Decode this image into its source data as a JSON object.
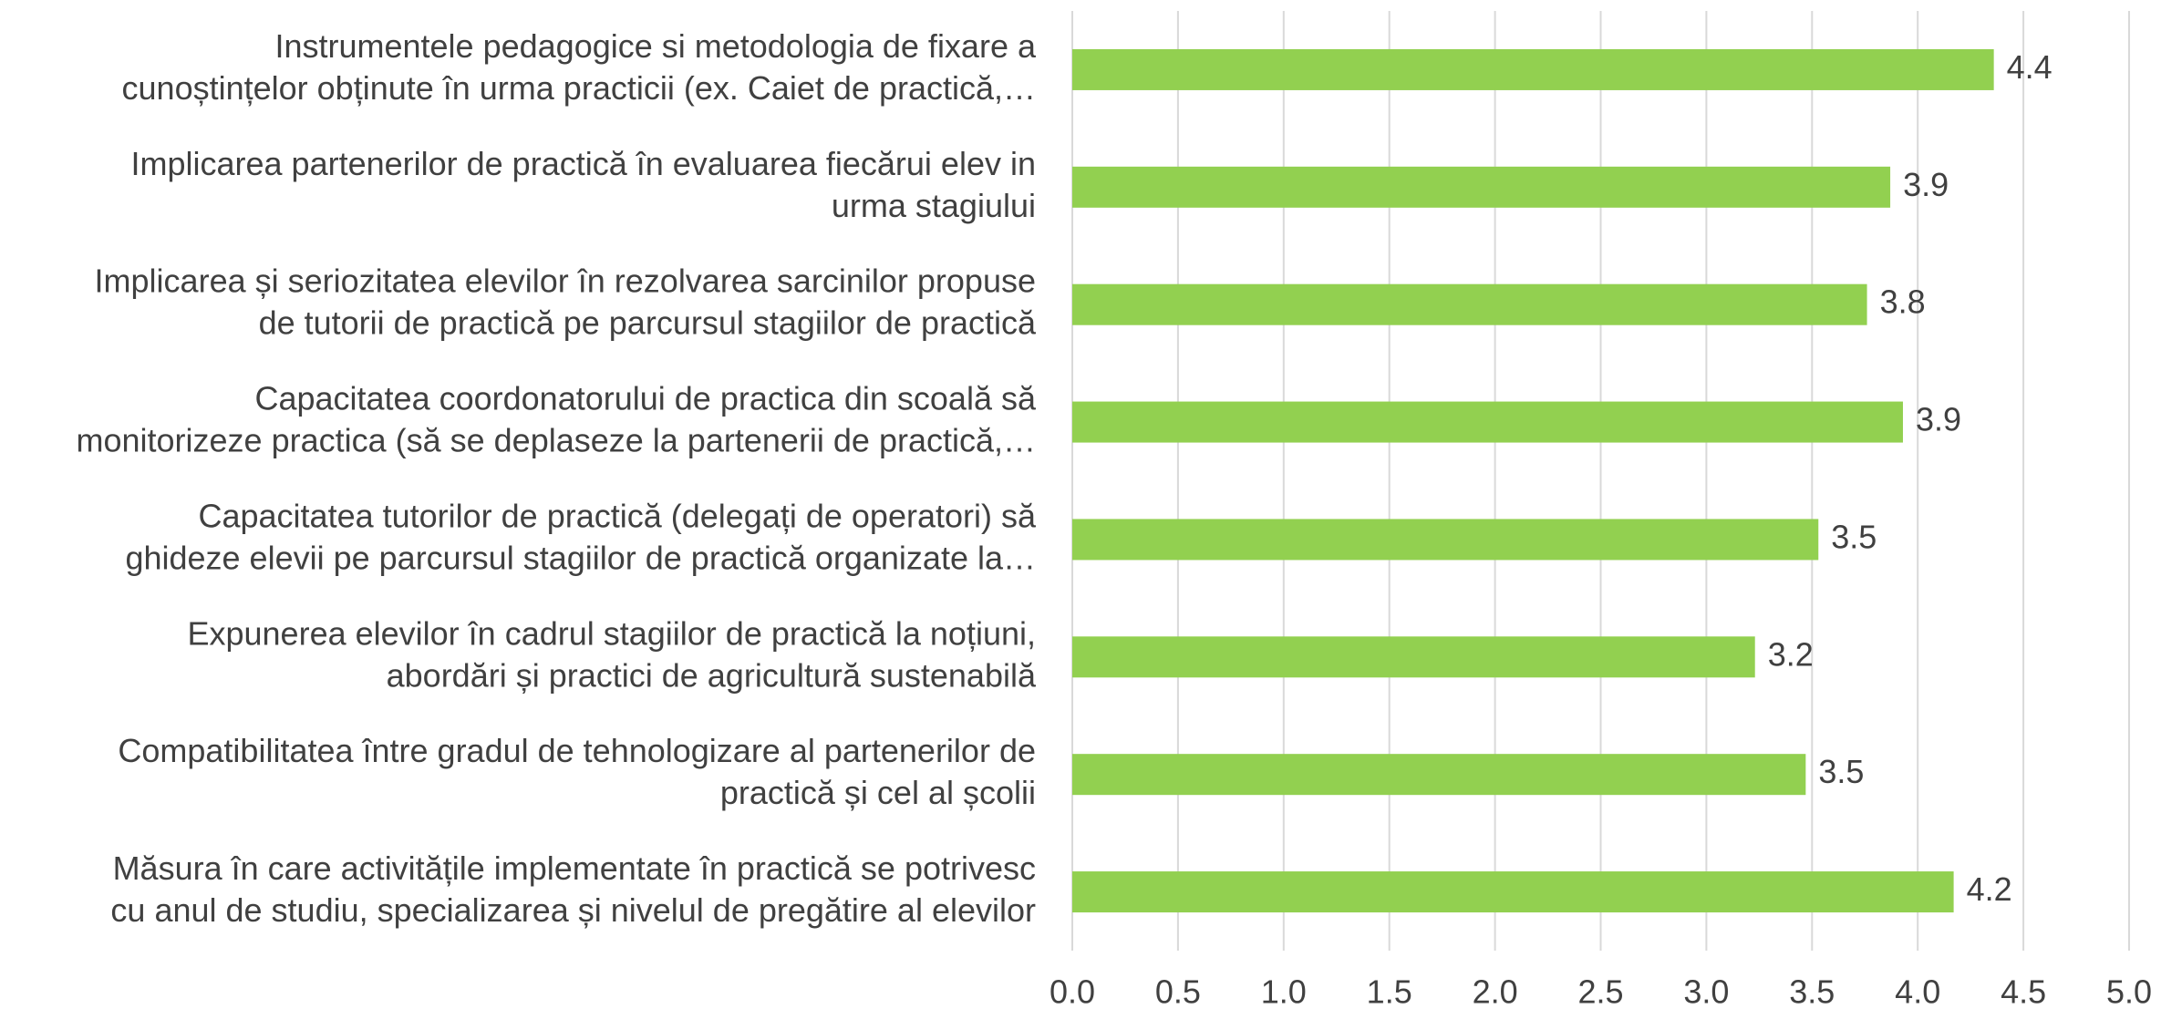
{
  "chart_data": {
    "type": "hbar",
    "categories": [
      [
        "Instrumentele pedagogice si metodologia de fixare a",
        "cunoștințelor obținute în urma practicii (ex. Caiet de practică,…"
      ],
      [
        "Implicarea partenerilor de practică în evaluarea fiecărui elev in",
        "urma stagiului"
      ],
      [
        "Implicarea și seriozitatea elevilor în rezolvarea sarcinilor propuse",
        "de tutorii de practică pe parcursul stagiilor de practică"
      ],
      [
        "Capacitatea coordonatorului de practica din scoală să",
        "monitorizeze practica (să se deplaseze la partenerii de practică,…"
      ],
      [
        "Capacitatea tutorilor de practică (delegați de operatori) să",
        "ghideze elevii pe parcursul stagiilor de practică organizate la…"
      ],
      [
        "Expunerea elevilor în cadrul stagiilor de practică la noțiuni,",
        "abordări și practici de agricultură sustenabilă"
      ],
      [
        "Compatibilitatea între gradul de tehnologizare al partenerilor de",
        "practică și cel al școlii"
      ],
      [
        "Măsura în care activitățile implementate în practică se potrivesc",
        "cu anul de studiu, specializarea și nivelul de pregătire al elevilor"
      ]
    ],
    "values": [
      4.36,
      3.87,
      3.76,
      3.93,
      3.53,
      3.23,
      3.47,
      4.17
    ],
    "value_labels": [
      "4.4",
      "3.9",
      "3.8",
      "3.9",
      "3.5",
      "3.2",
      "3.5",
      "4.2"
    ],
    "color": "#92d050",
    "xlim": [
      0,
      5
    ],
    "xticks": [
      {
        "value": 0,
        "label": "0.0"
      },
      {
        "value": 0.5,
        "label": "0.5"
      },
      {
        "value": 1,
        "label": "1.0"
      },
      {
        "value": 1.5,
        "label": "1.5"
      },
      {
        "value": 2,
        "label": "2.0"
      },
      {
        "value": 2.5,
        "label": "2.5"
      },
      {
        "value": 3,
        "label": "3.0"
      },
      {
        "value": 3.5,
        "label": "3.5"
      },
      {
        "value": 4,
        "label": "4.0"
      },
      {
        "value": 4.5,
        "label": "4.5"
      },
      {
        "value": 5,
        "label": "5.0"
      }
    ],
    "grid": true
  }
}
